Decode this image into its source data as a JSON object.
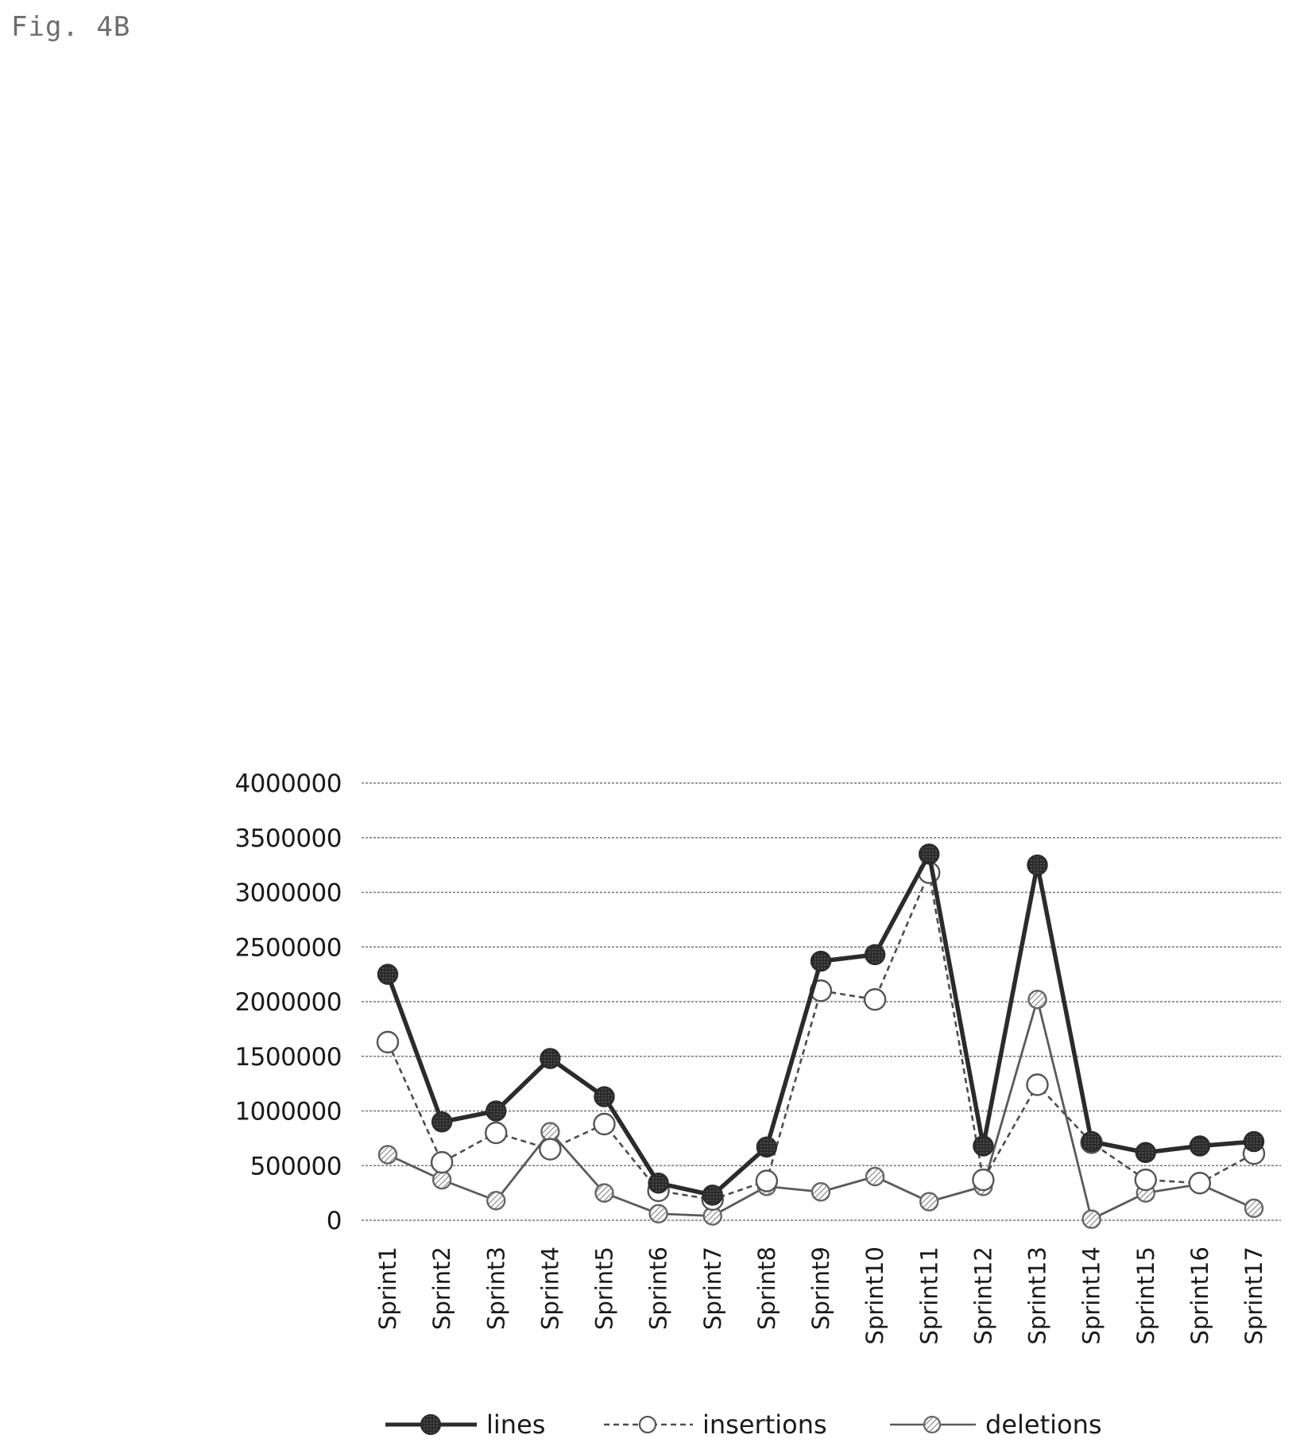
{
  "figure_label": "Fig. 4B",
  "colors": {
    "axis_text": "#1a1a1a",
    "grid": "#777777",
    "lines": "#2b2b2b",
    "insertions": "#555555",
    "deletions": "#555555",
    "hatch": "#9a9a9a"
  },
  "chart_data": {
    "type": "line",
    "title": "",
    "xlabel": "",
    "ylabel": "",
    "ylim": [
      0,
      4000000
    ],
    "yticks": [
      0,
      500000,
      1000000,
      1500000,
      2000000,
      2500000,
      3000000,
      3500000,
      4000000
    ],
    "ytick_labels": [
      "0",
      "500000",
      "1000000",
      "1500000",
      "2000000",
      "2500000",
      "3000000",
      "3500000",
      "4000000"
    ],
    "grid": true,
    "legend_position": "bottom",
    "categories": [
      "Sprint1",
      "Sprint2",
      "Sprint3",
      "Sprint4",
      "Sprint5",
      "Sprint6",
      "Sprint7",
      "Sprint8",
      "Sprint9",
      "Sprint10",
      "Sprint11",
      "Sprint12",
      "Sprint13",
      "Sprint14",
      "Sprint15",
      "Sprint16",
      "Sprint17"
    ],
    "series": [
      {
        "name": "lines",
        "marker": "filled-circle",
        "line_style": "solid",
        "values": [
          2250000,
          900000,
          1000000,
          1480000,
          1130000,
          340000,
          230000,
          670000,
          2370000,
          2430000,
          3350000,
          680000,
          3250000,
          720000,
          620000,
          680000,
          720000
        ]
      },
      {
        "name": "insertions",
        "marker": "open-circle",
        "line_style": "dashed",
        "values": [
          1630000,
          530000,
          800000,
          650000,
          880000,
          270000,
          190000,
          360000,
          2100000,
          2020000,
          3180000,
          370000,
          1240000,
          710000,
          370000,
          340000,
          610000
        ]
      },
      {
        "name": "deletions",
        "marker": "hatched-circle",
        "line_style": "solid-thin",
        "values": [
          600000,
          370000,
          180000,
          810000,
          250000,
          60000,
          40000,
          310000,
          260000,
          400000,
          170000,
          310000,
          2020000,
          10000,
          250000,
          330000,
          110000
        ]
      }
    ]
  }
}
